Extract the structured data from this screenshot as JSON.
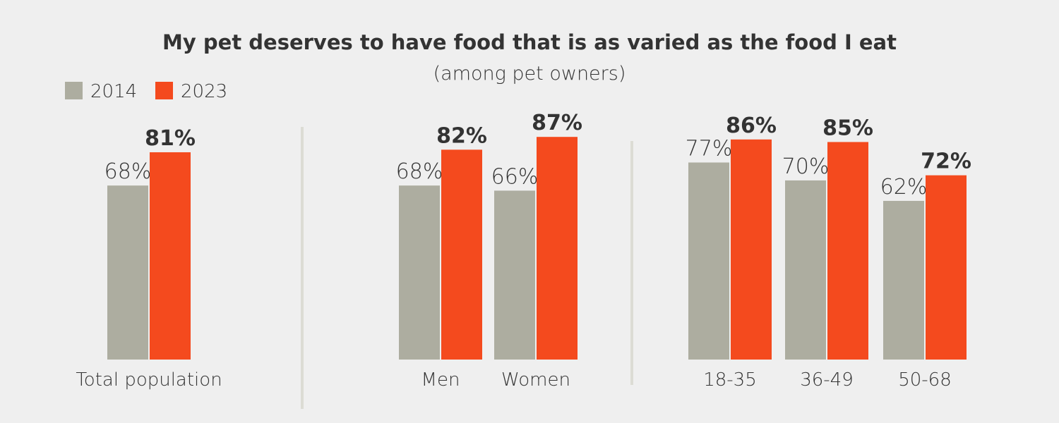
{
  "chart_data": {
    "type": "bar",
    "title": "My pet deserves to have food that is as varied as the food I eat",
    "subtitle": "(among pet owners)",
    "categories": [
      "Total population",
      "Men",
      "Women",
      "18-35",
      "36-49",
      "50-68"
    ],
    "series": [
      {
        "name": "2014",
        "color": "#adada0",
        "values": [
          68,
          68,
          66,
          77,
          70,
          62
        ],
        "value_labels": [
          "68%",
          "68%",
          "66%",
          "77%",
          "70%",
          "62%"
        ]
      },
      {
        "name": "2023",
        "color": "#f44a1e",
        "values": [
          81,
          82,
          87,
          86,
          85,
          72
        ],
        "value_labels": [
          "81%",
          "82%",
          "87%",
          "86%",
          "85%",
          "72%"
        ]
      }
    ]
  }
}
